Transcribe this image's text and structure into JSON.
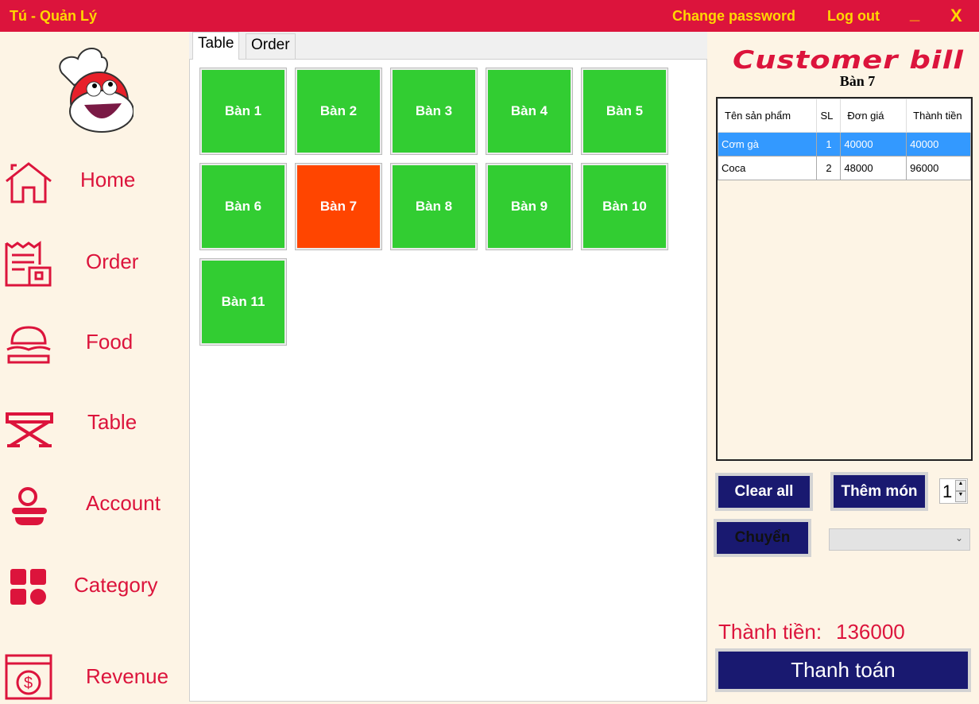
{
  "titlebar": {
    "title": "Tú - Quản Lý",
    "change_password": "Change password",
    "logout": "Log out",
    "minimize": "_",
    "close": "X"
  },
  "sidebar": {
    "items": [
      {
        "label": "Home",
        "icon": "home-icon"
      },
      {
        "label": "Order",
        "icon": "receipt-icon"
      },
      {
        "label": "Food",
        "icon": "burger-icon"
      },
      {
        "label": "Table",
        "icon": "table-icon"
      },
      {
        "label": "Account",
        "icon": "account-icon"
      },
      {
        "label": "Category",
        "icon": "category-icon"
      },
      {
        "label": "Revenue",
        "icon": "revenue-icon"
      }
    ]
  },
  "tabs": [
    {
      "label": "Table"
    },
    {
      "label": "Order"
    }
  ],
  "tables": [
    {
      "label": "Bàn 1",
      "status": "empty"
    },
    {
      "label": "Bàn 2",
      "status": "empty"
    },
    {
      "label": "Bàn 3",
      "status": "empty"
    },
    {
      "label": "Bàn 4",
      "status": "empty"
    },
    {
      "label": "Bàn 5",
      "status": "empty"
    },
    {
      "label": "Bàn 6",
      "status": "empty"
    },
    {
      "label": "Bàn 7",
      "status": "selected"
    },
    {
      "label": "Bàn 8",
      "status": "empty"
    },
    {
      "label": "Bàn 9",
      "status": "empty"
    },
    {
      "label": "Bàn 10",
      "status": "empty"
    },
    {
      "label": "Bàn 11",
      "status": "empty"
    }
  ],
  "colors": {
    "empty": "#32cd32",
    "selected": "#ff4500",
    "brand": "#dc143c",
    "button": "#191970"
  },
  "bill": {
    "title": "Customer bill",
    "table": "Bàn 7",
    "columns": [
      "Tên sản phẩm",
      "SL",
      "Đơn giá",
      "Thành tiền"
    ],
    "rows": [
      [
        "Cơm gà",
        "1",
        "40000",
        "40000"
      ],
      [
        "Coca",
        "2",
        "48000",
        "96000"
      ]
    ],
    "clear_all": "Clear all",
    "add_item": "Thêm món",
    "quantity": "1",
    "move": "Chuyển",
    "move_target": "",
    "total_label": "Thành tiền:",
    "total_value": "136000",
    "pay": "Thanh toán"
  }
}
